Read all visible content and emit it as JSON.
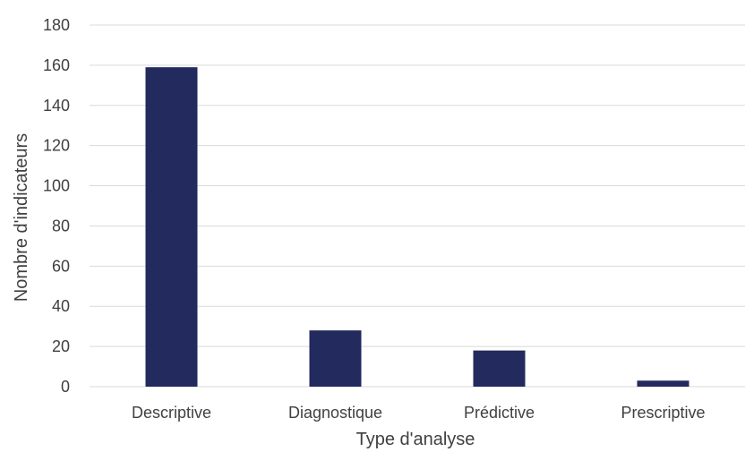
{
  "chart_data": {
    "type": "bar",
    "title": "",
    "xlabel": "Type d'analyse",
    "ylabel": "Nombre d'indicateurs",
    "categories": [
      "Descriptive",
      "Diagnostique",
      "Prédictive",
      "Prescriptive"
    ],
    "series": [
      {
        "values": [
          159,
          28,
          18,
          3
        ]
      }
    ],
    "ylim": [
      0,
      180
    ],
    "yticks": [
      0,
      20,
      40,
      60,
      80,
      100,
      120,
      140,
      160,
      180
    ],
    "grid": true,
    "legend": "none",
    "colors": {
      "bar": "#222a5e",
      "grid": "#d9d9d9",
      "text": "#404040"
    }
  }
}
